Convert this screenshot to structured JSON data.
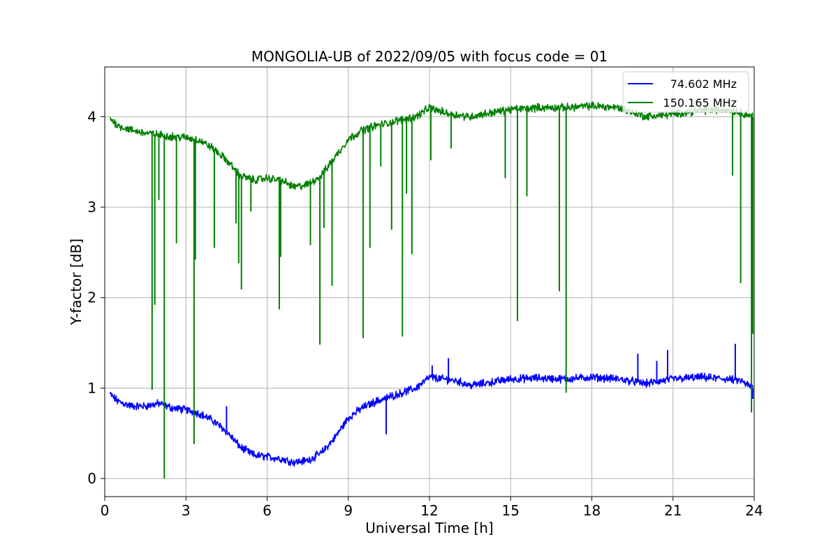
{
  "chart_data": {
    "type": "line",
    "title": "MONGOLIA-UB of 2022/09/05 with focus code = 01",
    "xlabel": "Universal Time [h]",
    "ylabel": "Y-factor [dB]",
    "xlim": [
      0,
      24
    ],
    "ylim": [
      -0.2,
      4.55
    ],
    "xticks": [
      0,
      3,
      6,
      9,
      12,
      15,
      18,
      21,
      24
    ],
    "xtick_labels": [
      "0",
      "3",
      "6",
      "9",
      "12",
      "15",
      "18",
      "21",
      "24"
    ],
    "yticks": [
      0,
      1,
      2,
      3,
      4
    ],
    "ytick_labels": [
      "0",
      "1",
      "2",
      "3",
      "4"
    ],
    "grid": true,
    "legend_position": "top-right",
    "series": [
      {
        "name": "74.602 MHz",
        "color": "#0000ff",
        "noise": 0.035,
        "x": [
          0.2,
          0.5,
          1.0,
          1.5,
          2.0,
          2.5,
          3.0,
          3.5,
          4.0,
          4.5,
          5.0,
          5.5,
          6.0,
          6.5,
          7.0,
          7.5,
          8.0,
          8.5,
          9.0,
          9.5,
          10.0,
          10.5,
          11.0,
          11.5,
          12.0,
          12.5,
          13.0,
          13.5,
          14.0,
          15.0,
          16.0,
          17.0,
          18.0,
          19.0,
          20.0,
          21.0,
          22.0,
          23.0,
          23.5,
          23.95
        ],
        "y": [
          0.93,
          0.85,
          0.8,
          0.8,
          0.83,
          0.78,
          0.76,
          0.72,
          0.64,
          0.52,
          0.35,
          0.26,
          0.24,
          0.22,
          0.18,
          0.2,
          0.28,
          0.45,
          0.67,
          0.78,
          0.85,
          0.9,
          0.95,
          1.0,
          1.12,
          1.1,
          1.08,
          1.03,
          1.05,
          1.1,
          1.11,
          1.1,
          1.12,
          1.1,
          1.05,
          1.1,
          1.12,
          1.1,
          1.08,
          1.0
        ],
        "spikes": [
          [
            4.5,
            0.8
          ],
          [
            10.4,
            0.49
          ],
          [
            12.1,
            1.25
          ],
          [
            12.7,
            1.33
          ],
          [
            19.7,
            1.38
          ],
          [
            20.4,
            1.3
          ],
          [
            20.8,
            1.42
          ],
          [
            23.3,
            1.49
          ],
          [
            23.95,
            0.88
          ]
        ]
      },
      {
        "name": "150.165 MHz",
        "color": "#008000",
        "noise": 0.035,
        "x": [
          0.2,
          0.5,
          1.0,
          1.5,
          2.0,
          2.5,
          3.0,
          3.5,
          4.0,
          4.5,
          5.0,
          5.5,
          6.0,
          6.5,
          7.0,
          7.5,
          8.0,
          8.5,
          9.0,
          9.5,
          10.0,
          10.5,
          11.0,
          11.5,
          12.0,
          12.5,
          13.0,
          13.5,
          14.0,
          15.0,
          16.0,
          17.0,
          18.0,
          19.0,
          20.0,
          21.0,
          22.0,
          23.0,
          23.5,
          23.95
        ],
        "y": [
          3.98,
          3.9,
          3.85,
          3.82,
          3.8,
          3.78,
          3.77,
          3.74,
          3.65,
          3.52,
          3.35,
          3.3,
          3.32,
          3.3,
          3.22,
          3.25,
          3.35,
          3.55,
          3.75,
          3.85,
          3.9,
          3.93,
          3.97,
          4.0,
          4.1,
          4.05,
          4.02,
          4.0,
          4.03,
          4.08,
          4.1,
          4.1,
          4.12,
          4.1,
          4.0,
          4.03,
          4.07,
          4.08,
          4.05,
          4.0
        ],
        "spikes": [
          [
            1.75,
            0.98
          ],
          [
            1.85,
            1.92
          ],
          [
            2.0,
            3.08
          ],
          [
            2.2,
            0.0
          ],
          [
            2.65,
            2.6
          ],
          [
            3.3,
            0.38
          ],
          [
            3.35,
            2.42
          ],
          [
            4.05,
            2.55
          ],
          [
            4.85,
            2.82
          ],
          [
            4.95,
            2.38
          ],
          [
            5.05,
            2.09
          ],
          [
            5.4,
            2.95
          ],
          [
            6.45,
            1.87
          ],
          [
            6.5,
            2.45
          ],
          [
            7.6,
            2.58
          ],
          [
            7.95,
            1.48
          ],
          [
            8.1,
            2.77
          ],
          [
            8.4,
            2.13
          ],
          [
            9.55,
            1.55
          ],
          [
            9.8,
            2.55
          ],
          [
            10.2,
            3.45
          ],
          [
            10.6,
            2.75
          ],
          [
            11.0,
            1.57
          ],
          [
            11.15,
            3.15
          ],
          [
            11.35,
            2.48
          ],
          [
            12.05,
            3.52
          ],
          [
            12.8,
            3.65
          ],
          [
            14.8,
            3.32
          ],
          [
            15.25,
            1.74
          ],
          [
            15.6,
            3.12
          ],
          [
            16.8,
            2.07
          ],
          [
            17.05,
            0.95
          ],
          [
            23.2,
            3.35
          ],
          [
            23.5,
            2.16
          ],
          [
            23.9,
            0.73
          ],
          [
            23.95,
            1.6
          ]
        ]
      }
    ]
  }
}
